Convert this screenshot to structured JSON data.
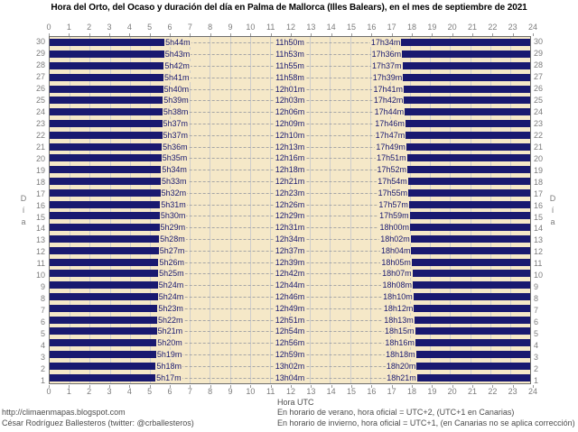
{
  "title": "Hora del Orto, del Ocaso y duración del día en Palma de Mallorca (Illes Balears), en el mes de septiembre de 2021",
  "axis": {
    "x_label": "Hora UTC",
    "hour_ticks": [
      "0",
      "1",
      "2",
      "3",
      "4",
      "5",
      "6",
      "7",
      "8",
      "9",
      "10",
      "11",
      "12",
      "13",
      "14",
      "15",
      "16",
      "17",
      "18",
      "19",
      "20",
      "21",
      "22",
      "23",
      "24"
    ],
    "y_label": "Día"
  },
  "footer": {
    "url": "http://climaenmapas.blogspot.com",
    "author": "César Rodríguez Ballesteros (twitter: @crballesteros)",
    "note_summer": "En horario de verano, hora oficial = UTC+2, (UTC+1 en Canarias)",
    "note_winter": "En horario de invierno, hora oficial = UTC+1, (en Canarias no se aplica corrección)"
  },
  "colors": {
    "bar": "#191970",
    "plot_background": "#F5E8C8",
    "grid_line": "#cdcdcd",
    "tick_text": "#7c7c7c"
  },
  "chart_data": {
    "type": "bar",
    "subtype": "horizontal-day-night-span",
    "title": "Hora del Orto, del Ocaso y duración del día en Palma de Mallorca (Illes Balears), en el mes de septiembre de 2021",
    "xlabel": "Hora UTC",
    "ylabel": "Día",
    "xlim": [
      0,
      24
    ],
    "grid": true,
    "days": [
      {
        "day": 30,
        "sunrise": "5h44m",
        "duration": "11h50m",
        "sunset": "17h34m"
      },
      {
        "day": 29,
        "sunrise": "5h43m",
        "duration": "11h53m",
        "sunset": "17h36m"
      },
      {
        "day": 28,
        "sunrise": "5h42m",
        "duration": "11h55m",
        "sunset": "17h37m"
      },
      {
        "day": 27,
        "sunrise": "5h41m",
        "duration": "11h58m",
        "sunset": "17h39m"
      },
      {
        "day": 26,
        "sunrise": "5h40m",
        "duration": "12h01m",
        "sunset": "17h41m"
      },
      {
        "day": 25,
        "sunrise": "5h39m",
        "duration": "12h03m",
        "sunset": "17h42m"
      },
      {
        "day": 24,
        "sunrise": "5h38m",
        "duration": "12h06m",
        "sunset": "17h44m"
      },
      {
        "day": 23,
        "sunrise": "5h37m",
        "duration": "12h09m",
        "sunset": "17h46m"
      },
      {
        "day": 22,
        "sunrise": "5h37m",
        "duration": "12h10m",
        "sunset": "17h47m"
      },
      {
        "day": 21,
        "sunrise": "5h36m",
        "duration": "12h13m",
        "sunset": "17h49m"
      },
      {
        "day": 20,
        "sunrise": "5h35m",
        "duration": "12h16m",
        "sunset": "17h51m"
      },
      {
        "day": 19,
        "sunrise": "5h34m",
        "duration": "12h18m",
        "sunset": "17h52m"
      },
      {
        "day": 18,
        "sunrise": "5h33m",
        "duration": "12h21m",
        "sunset": "17h54m"
      },
      {
        "day": 17,
        "sunrise": "5h32m",
        "duration": "12h23m",
        "sunset": "17h55m"
      },
      {
        "day": 16,
        "sunrise": "5h31m",
        "duration": "12h26m",
        "sunset": "17h57m"
      },
      {
        "day": 15,
        "sunrise": "5h30m",
        "duration": "12h29m",
        "sunset": "17h59m"
      },
      {
        "day": 14,
        "sunrise": "5h29m",
        "duration": "12h31m",
        "sunset": "18h00m"
      },
      {
        "day": 13,
        "sunrise": "5h28m",
        "duration": "12h34m",
        "sunset": "18h02m"
      },
      {
        "day": 12,
        "sunrise": "5h27m",
        "duration": "12h37m",
        "sunset": "18h04m"
      },
      {
        "day": 11,
        "sunrise": "5h26m",
        "duration": "12h39m",
        "sunset": "18h05m"
      },
      {
        "day": 10,
        "sunrise": "5h25m",
        "duration": "12h42m",
        "sunset": "18h07m"
      },
      {
        "day": 9,
        "sunrise": "5h24m",
        "duration": "12h44m",
        "sunset": "18h08m"
      },
      {
        "day": 8,
        "sunrise": "5h24m",
        "duration": "12h46m",
        "sunset": "18h10m"
      },
      {
        "day": 7,
        "sunrise": "5h23m",
        "duration": "12h49m",
        "sunset": "18h12m"
      },
      {
        "day": 6,
        "sunrise": "5h22m",
        "duration": "12h51m",
        "sunset": "18h13m"
      },
      {
        "day": 5,
        "sunrise": "5h21m",
        "duration": "12h54m",
        "sunset": "18h15m"
      },
      {
        "day": 4,
        "sunrise": "5h20m",
        "duration": "12h56m",
        "sunset": "18h16m"
      },
      {
        "day": 3,
        "sunrise": "5h19m",
        "duration": "12h59m",
        "sunset": "18h18m"
      },
      {
        "day": 2,
        "sunrise": "5h18m",
        "duration": "13h02m",
        "sunset": "18h20m"
      },
      {
        "day": 1,
        "sunrise": "5h17m",
        "duration": "13h04m",
        "sunset": "18h21m"
      }
    ]
  }
}
